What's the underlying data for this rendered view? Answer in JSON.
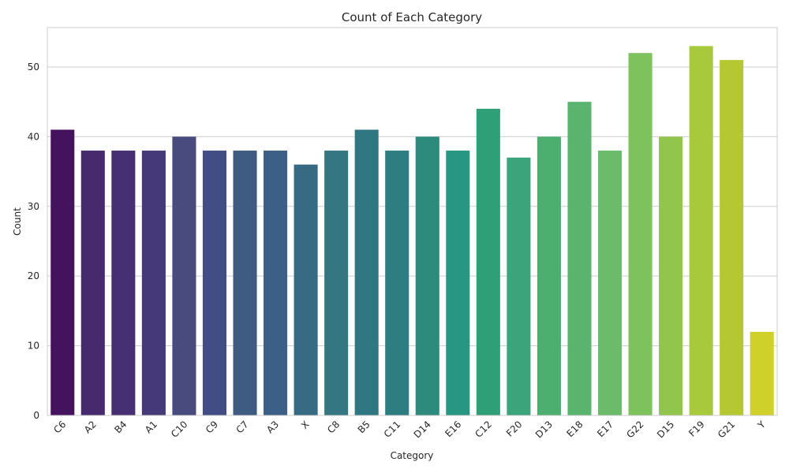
{
  "chart_data": {
    "type": "bar",
    "title": "Count of Each Category",
    "xlabel": "Category",
    "ylabel": "Count",
    "categories": [
      "C6",
      "A2",
      "B4",
      "A1",
      "C10",
      "C9",
      "C7",
      "A3",
      "X",
      "C8",
      "B5",
      "C11",
      "D14",
      "E16",
      "C12",
      "F20",
      "D13",
      "E18",
      "E17",
      "G22",
      "D15",
      "F19",
      "G21",
      "Y"
    ],
    "values": [
      41,
      38,
      38,
      38,
      40,
      38,
      38,
      38,
      36,
      38,
      41,
      38,
      40,
      38,
      44,
      37,
      40,
      45,
      38,
      52,
      40,
      53,
      51,
      12
    ],
    "colors": [
      "#45125e",
      "#472a6d",
      "#472f73",
      "#46397a",
      "#494b7e",
      "#414d84",
      "#3f5b81",
      "#3b5f86",
      "#376a83",
      "#357683",
      "#2f7781",
      "#2e7d81",
      "#2c8b7d",
      "#279783",
      "#2e9f76",
      "#3ca47a",
      "#4caf6f",
      "#5ab46e",
      "#6cbb6b",
      "#7ec25d",
      "#92c54b",
      "#a8c93b",
      "#b6c831",
      "#d0d02b"
    ],
    "ylim": [
      0,
      55.65
    ],
    "yticks": [
      0,
      10,
      20,
      30,
      40,
      50
    ],
    "grid": true,
    "legend": "none"
  }
}
